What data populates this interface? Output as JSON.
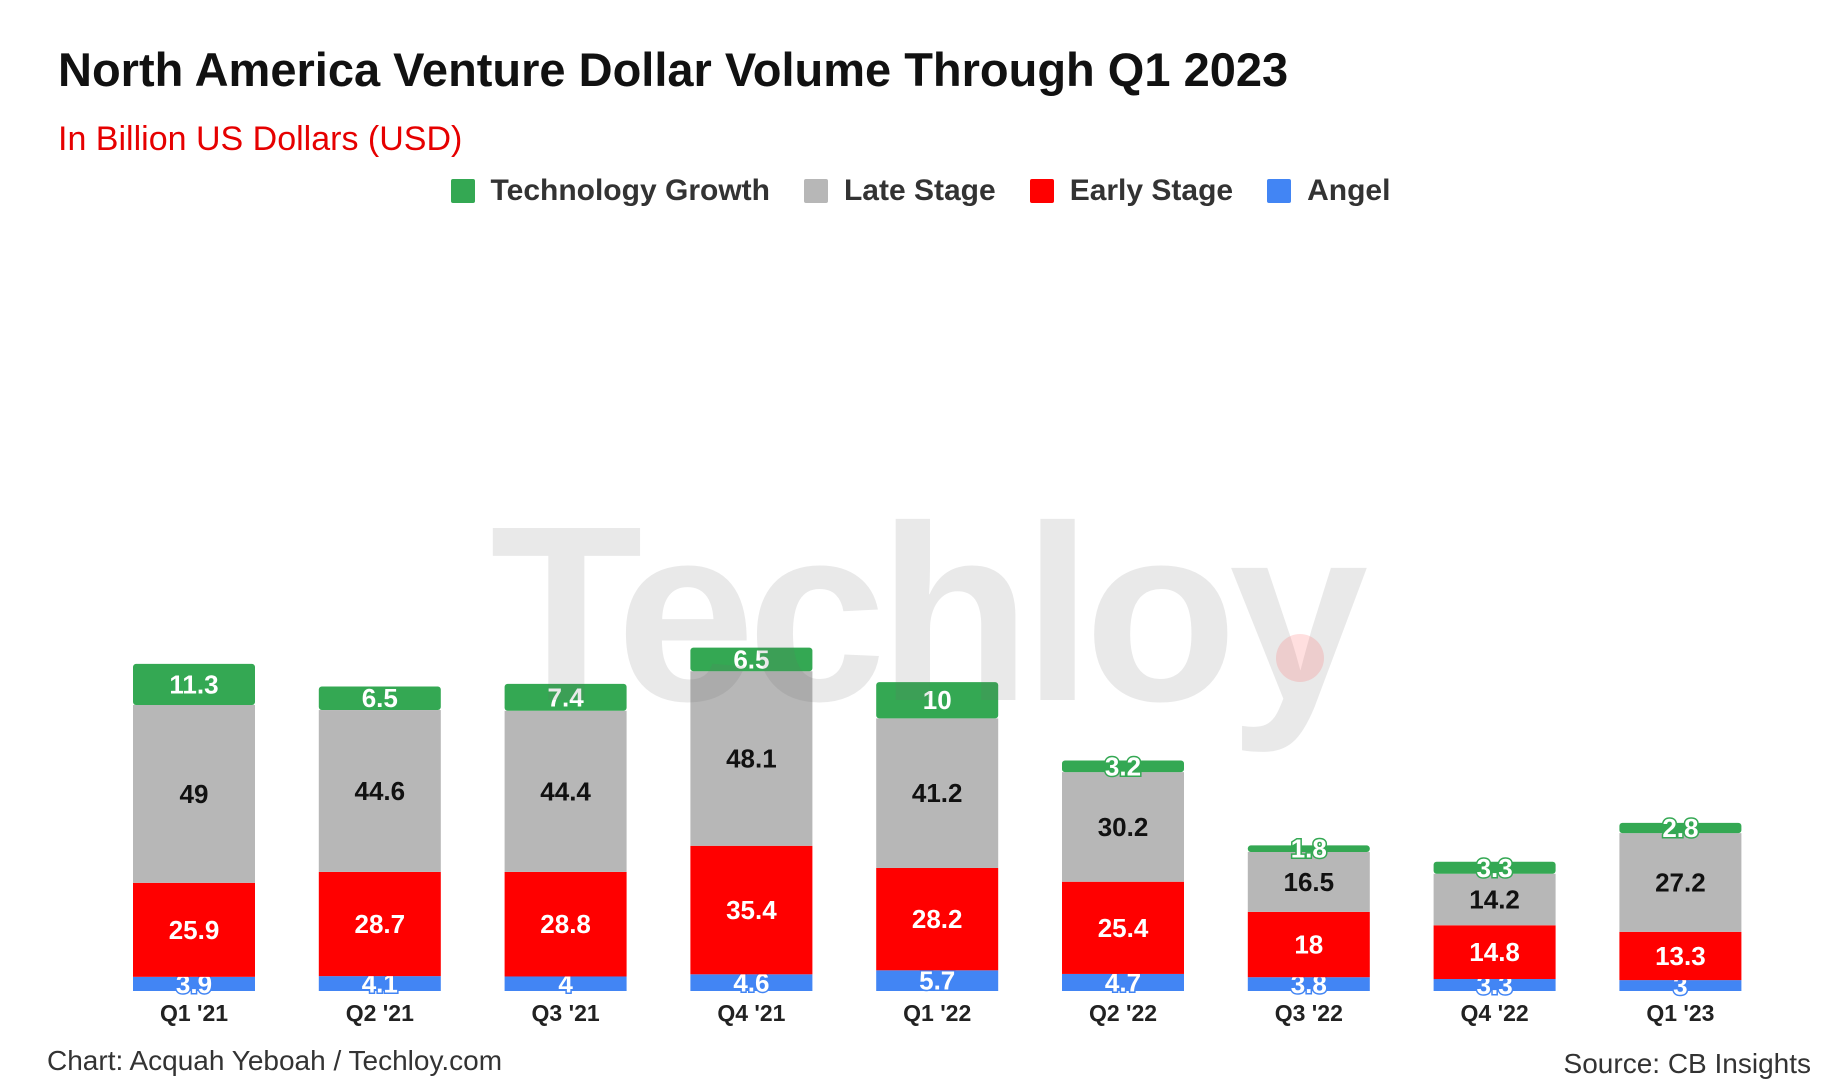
{
  "title": "North America Venture Dollar Volume Through Q1 2023",
  "subtitle": "In Billion US Dollars (USD)",
  "legend": [
    {
      "label": "Technology Growth",
      "color": "#34a853"
    },
    {
      "label": "Late Stage",
      "color": "#b7b7b7"
    },
    {
      "label": "Early Stage",
      "color": "#ff0000"
    },
    {
      "label": "Angel",
      "color": "#4285f4"
    }
  ],
  "footer": {
    "credit": "Chart: Acquah Yeboah / Techloy.com",
    "source": "Source: CB Insights"
  },
  "watermark": "Techloy",
  "chart_data": {
    "type": "bar",
    "stacked": true,
    "categories": [
      "Q1 '21",
      "Q2 '21",
      "Q3 '21",
      "Q4 '21",
      "Q1 '22",
      "Q2 '22",
      "Q3 '22",
      "Q4 '22",
      "Q1 '23"
    ],
    "series": [
      {
        "name": "Angel",
        "color": "#4285f4",
        "label_color": "#ffffff",
        "values": [
          3.9,
          4.1,
          4,
          4.6,
          5.7,
          4.7,
          3.8,
          3.3,
          3
        ]
      },
      {
        "name": "Early Stage",
        "color": "#ff0000",
        "label_color": "#ffffff",
        "values": [
          25.9,
          28.7,
          28.8,
          35.4,
          28.2,
          25.4,
          18,
          14.8,
          13.3
        ]
      },
      {
        "name": "Late Stage",
        "color": "#b7b7b7",
        "label_color": "#111111",
        "values": [
          49,
          44.6,
          44.4,
          48.1,
          41.2,
          30.2,
          16.5,
          14.2,
          27.2
        ]
      },
      {
        "name": "Technology Growth",
        "color": "#34a853",
        "label_color": "#ffffff",
        "values": [
          11.3,
          6.5,
          7.4,
          6.5,
          10,
          3.2,
          1.8,
          3.3,
          2.8
        ]
      }
    ],
    "ylim": [
      0,
      100
    ],
    "grid": false,
    "legend_position": "top-center"
  }
}
